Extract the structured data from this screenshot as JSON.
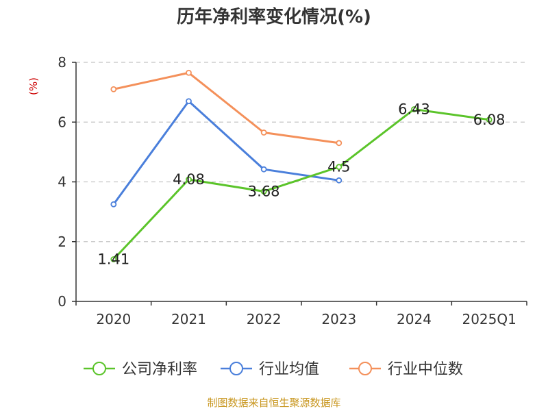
{
  "chart_data": {
    "type": "line",
    "title": "历年净利率变化情况(%)",
    "ylabel": "(%)",
    "xlabel": "",
    "ylim": [
      0,
      8
    ],
    "yticks": [
      "0",
      "2",
      "4",
      "6",
      "8"
    ],
    "grid": true,
    "legend_position": "bottom",
    "categories": [
      "2020",
      "2021",
      "2022",
      "2023",
      "2024",
      "2025Q1"
    ],
    "series": [
      {
        "name": "公司净利率",
        "color": "#5bc42a",
        "values": [
          1.41,
          4.08,
          3.68,
          4.5,
          6.43,
          6.08
        ],
        "labels": [
          "1.41",
          "4.08",
          "3.68",
          "4.5",
          "6.43",
          "6.08"
        ]
      },
      {
        "name": "行业均值",
        "color": "#4a7fdb",
        "values": [
          3.25,
          6.7,
          4.42,
          4.05,
          null,
          null
        ]
      },
      {
        "name": "行业中位数",
        "color": "#f4905a",
        "values": [
          7.1,
          7.65,
          5.65,
          5.3,
          null,
          null
        ]
      }
    ],
    "source": "制图数据来自恒生聚源数据库"
  }
}
